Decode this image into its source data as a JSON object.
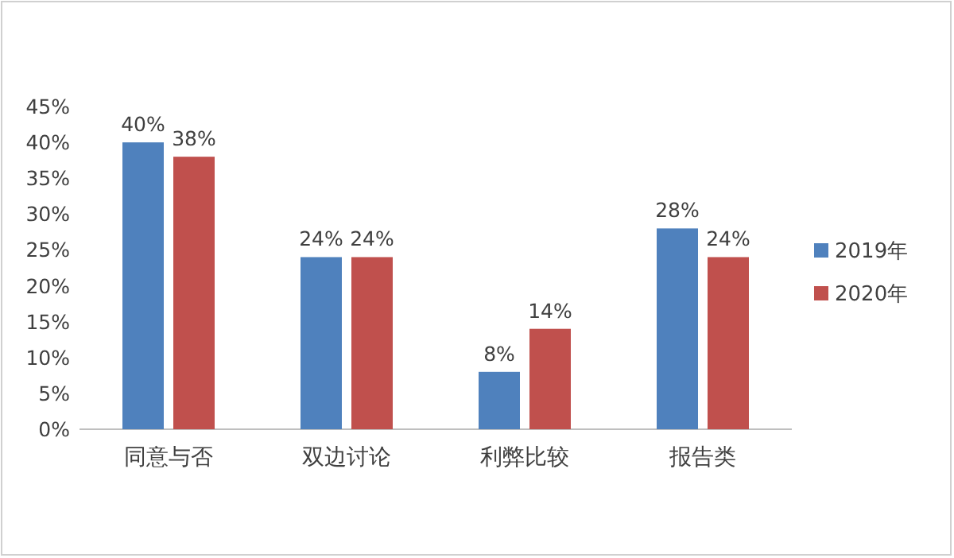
{
  "chart_data": {
    "type": "bar",
    "categories": [
      "同意与否",
      "双边讨论",
      "利弊比较",
      "报告类"
    ],
    "series": [
      {
        "name": "2019年",
        "color": "#4f81bd",
        "values": [
          40,
          24,
          8,
          28
        ]
      },
      {
        "name": "2020年",
        "color": "#c0504d",
        "values": [
          38,
          24,
          14,
          24
        ]
      }
    ],
    "ylim": [
      0,
      45
    ],
    "yticks": [
      {
        "value": 0,
        "label": "0%"
      },
      {
        "value": 5,
        "label": "5%"
      },
      {
        "value": 10,
        "label": "10%"
      },
      {
        "value": 15,
        "label": "15%"
      },
      {
        "value": 20,
        "label": "20%"
      },
      {
        "value": 25,
        "label": "25%"
      },
      {
        "value": 30,
        "label": "30%"
      },
      {
        "value": 35,
        "label": "35%"
      },
      {
        "value": 40,
        "label": "40%"
      },
      {
        "value": 45,
        "label": "45%"
      }
    ],
    "value_labels": [
      [
        "40%",
        "24%",
        "8%",
        "28%"
      ],
      [
        "38%",
        "24%",
        "14%",
        "24%"
      ]
    ],
    "grid": false,
    "legend": "right"
  }
}
